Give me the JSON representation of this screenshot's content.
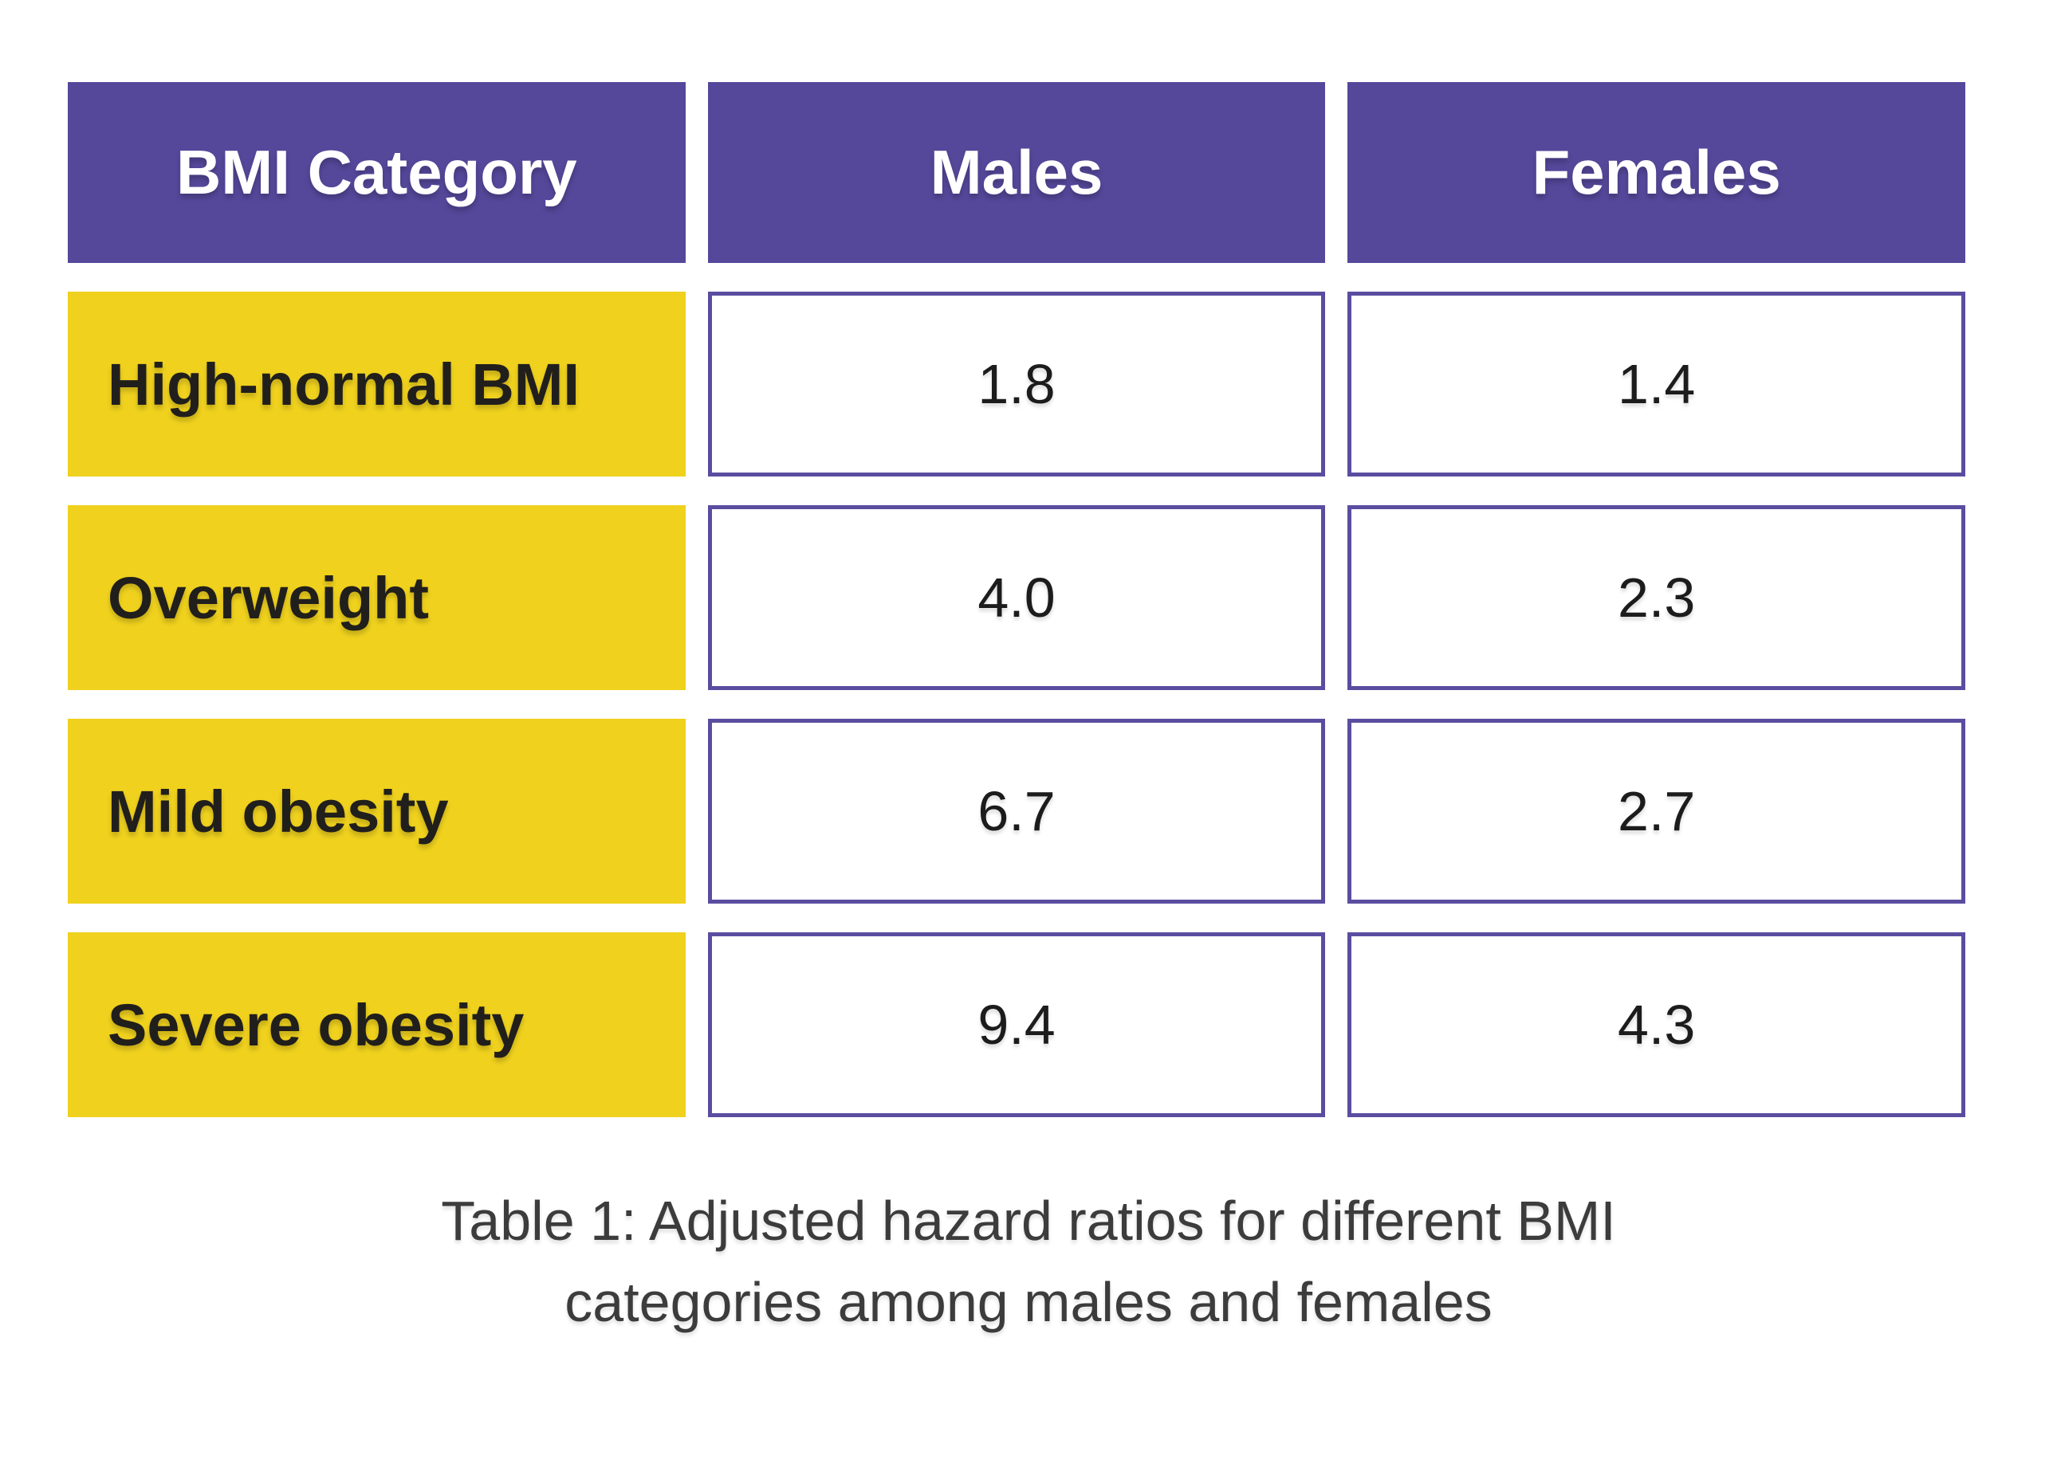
{
  "table": {
    "columns": [
      "BMI Category",
      "Males",
      "Females"
    ],
    "rows": [
      {
        "category": "High-normal BMI",
        "males": "1.8",
        "females": "1.4"
      },
      {
        "category": "Overweight",
        "males": "4.0",
        "females": "2.3"
      },
      {
        "category": "Mild obesity",
        "males": "6.7",
        "females": "2.7"
      },
      {
        "category": "Severe obesity",
        "males": "9.4",
        "females": "4.3"
      }
    ]
  },
  "caption": {
    "lines": [
      "Table 1: Adjusted hazard ratios for different BMI",
      "categories among males and females"
    ]
  },
  "colors": {
    "header_bg": "#55489B",
    "row_label_bg": "#EFD11E",
    "cell_border": "#5A4DA0",
    "caption_text": "#3C3C3C",
    "label_text": "#211F1C",
    "value_text": "#1C1C1C"
  },
  "chart_data": {
    "type": "table",
    "title": "Table 1: Adjusted hazard ratios for different BMI categories among males and females",
    "categories": [
      "High-normal BMI",
      "Overweight",
      "Mild obesity",
      "Severe obesity"
    ],
    "series": [
      {
        "name": "Males",
        "values": [
          1.8,
          4.0,
          6.7,
          9.4
        ]
      },
      {
        "name": "Females",
        "values": [
          1.4,
          2.3,
          2.7,
          4.3
        ]
      }
    ],
    "layout": {
      "header_style": "purple-fill",
      "row_label_style": "yellow-fill",
      "value_cell_style": "white-with-purple-border"
    }
  }
}
